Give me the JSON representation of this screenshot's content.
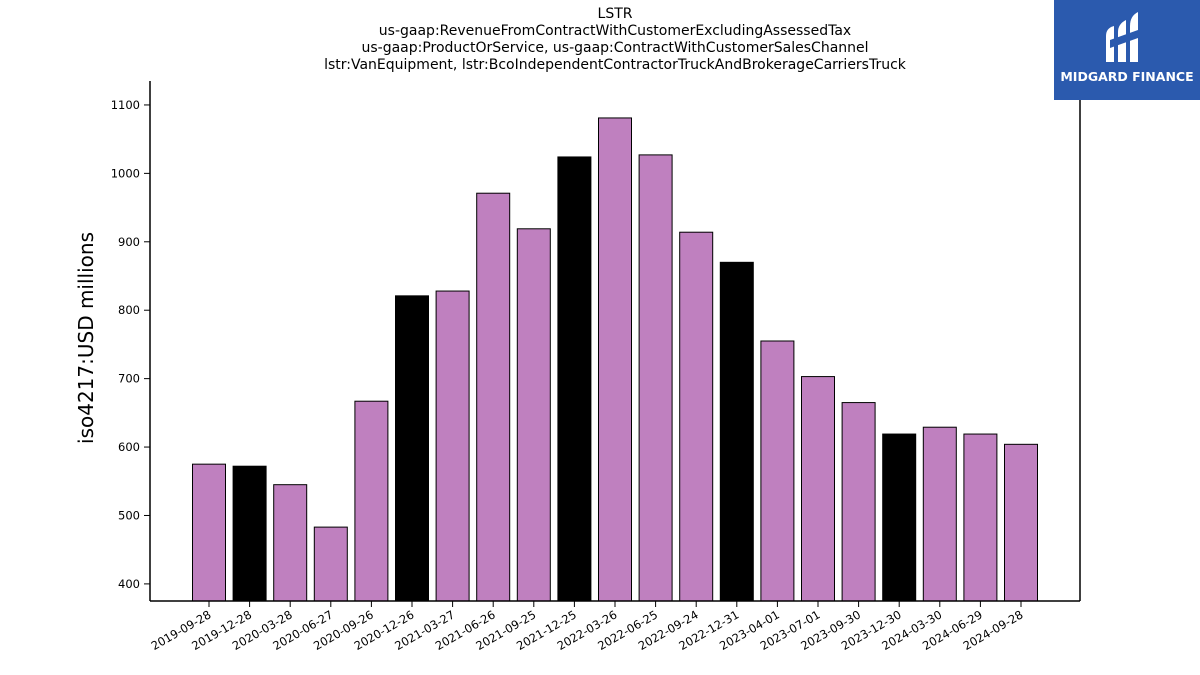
{
  "chart_data": {
    "type": "bar",
    "title_lines": [
      "LSTR",
      "us-gaap:RevenueFromContractWithCustomerExcludingAssessedTax",
      "us-gaap:ProductOrService, us-gaap:ContractWithCustomerSalesChannel",
      "lstr:VanEquipment, lstr:BcoIndependentContractorTruckAndBrokerageCarriersTruck"
    ],
    "ylabel": "iso4217:USD  millions",
    "ylim": [
      375,
      1135
    ],
    "yticks": [
      400,
      500,
      600,
      700,
      800,
      900,
      1000,
      1100
    ],
    "categories": [
      "2019-09-28",
      "2019-12-28",
      "2020-03-28",
      "2020-06-27",
      "2020-09-26",
      "2020-12-26",
      "2021-03-27",
      "2021-06-26",
      "2021-09-25",
      "2021-12-25",
      "2022-03-26",
      "2022-06-25",
      "2022-09-24",
      "2022-12-31",
      "2023-04-01",
      "2023-07-01",
      "2023-09-30",
      "2023-12-30",
      "2024-03-30",
      "2024-06-29",
      "2024-09-28"
    ],
    "values": [
      575,
      572,
      545,
      483,
      667,
      821,
      828,
      971,
      919,
      1024,
      1081,
      1027,
      914,
      870,
      755,
      703,
      665,
      619,
      629,
      619,
      604
    ],
    "bar_colors": [
      "#bf80bf",
      "#000000",
      "#bf80bf",
      "#bf80bf",
      "#bf80bf",
      "#000000",
      "#bf80bf",
      "#bf80bf",
      "#bf80bf",
      "#000000",
      "#bf80bf",
      "#bf80bf",
      "#bf80bf",
      "#000000",
      "#bf80bf",
      "#bf80bf",
      "#bf80bf",
      "#000000",
      "#bf80bf",
      "#bf80bf",
      "#bf80bf"
    ],
    "grid": false
  },
  "brand": {
    "name": "MIDGARD FINANCE",
    "background": "#2b5aae"
  }
}
